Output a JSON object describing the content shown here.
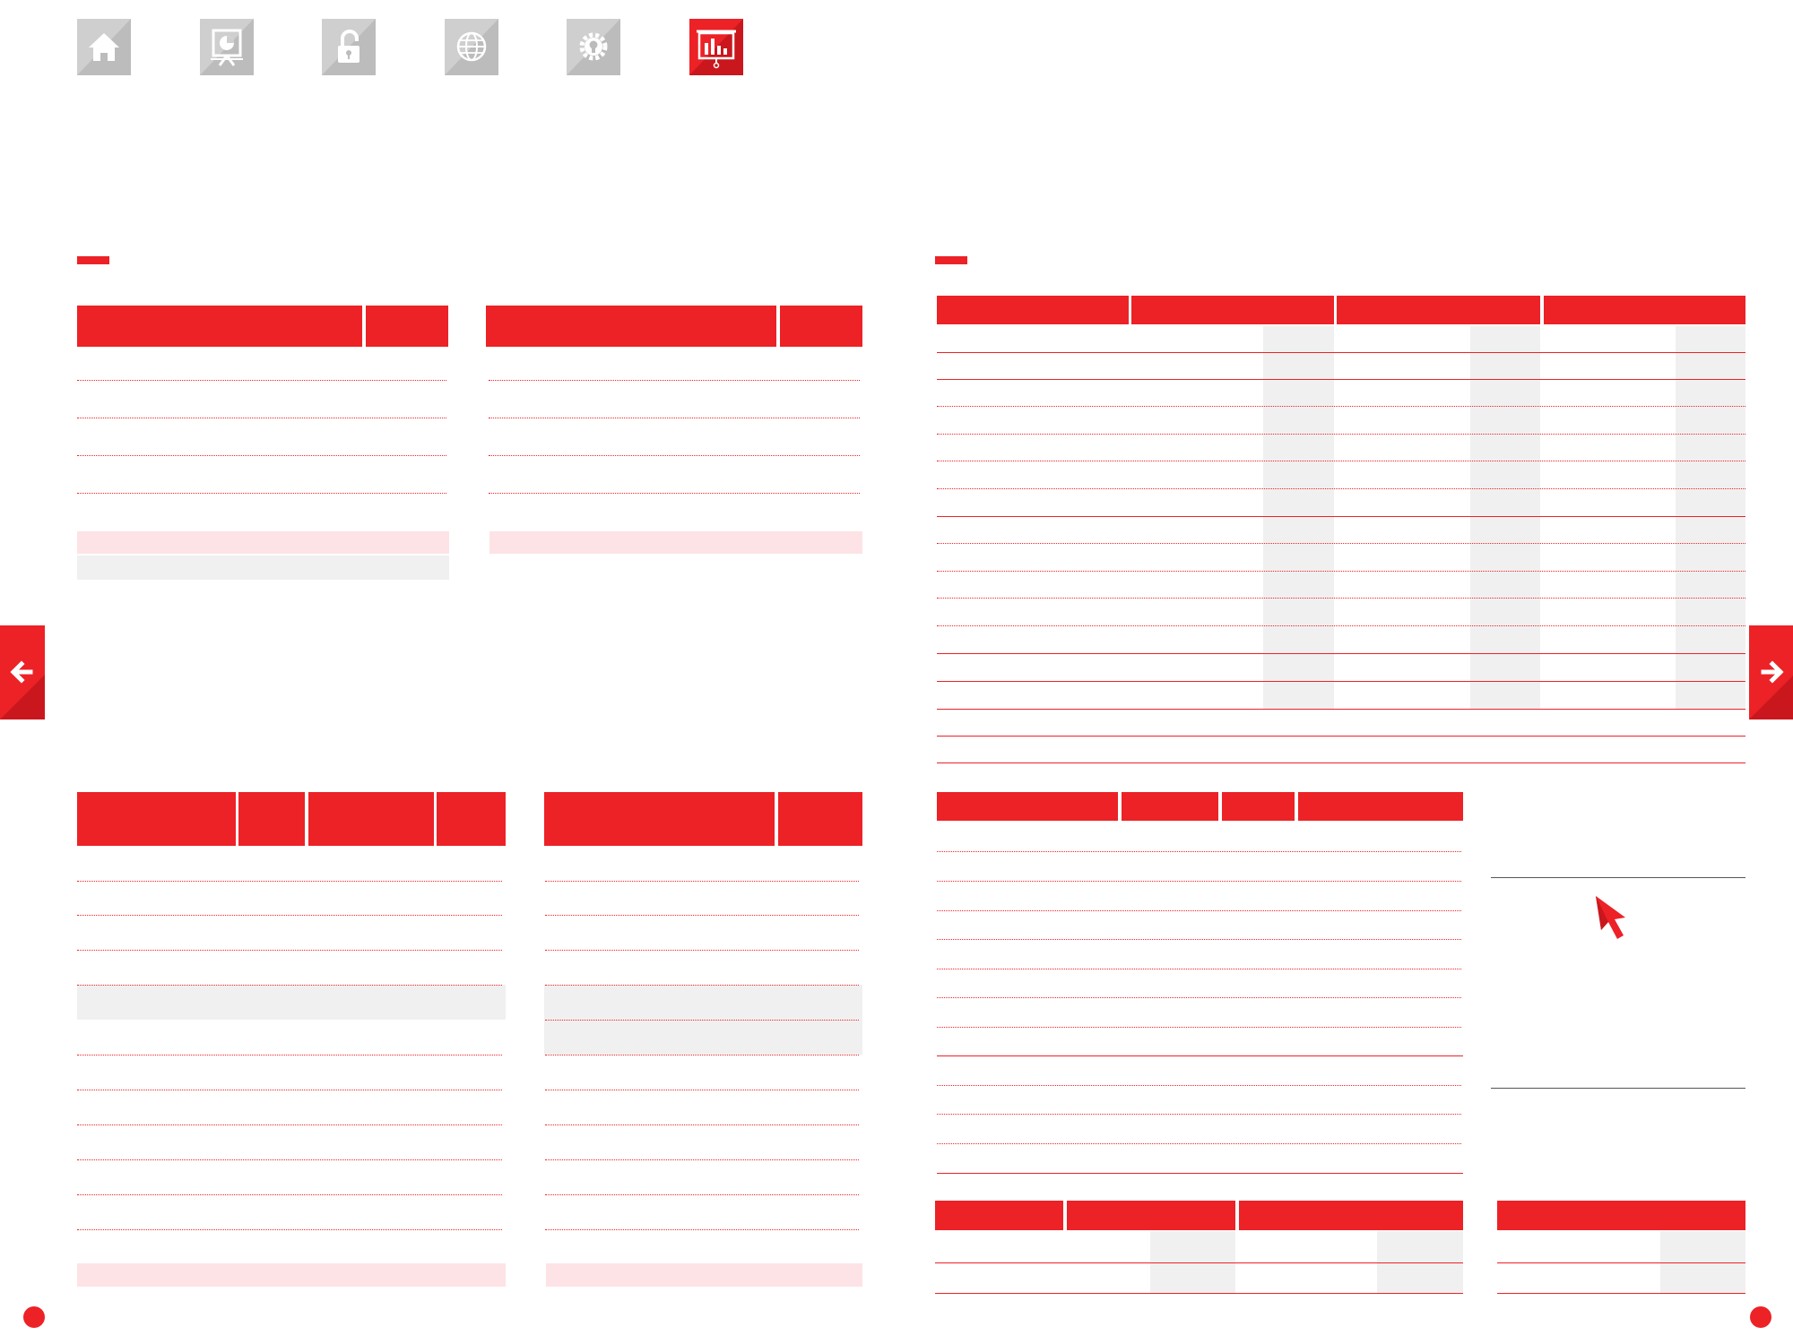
{
  "nav": {
    "icons": [
      "home-icon",
      "presentation-icon",
      "unlock-icon",
      "globe-icon",
      "gear-bulb-icon",
      "chart-board-icon"
    ],
    "active_index": 5,
    "inactive_color": "#c8c8c8",
    "active_color": "#ec2227"
  },
  "page": {
    "prev_icon": "arrow-left-icon",
    "next_icon": "arrow-right-icon",
    "pointer_icon": "cursor-arrow-icon"
  },
  "colors": {
    "accent": "#ec2227",
    "highlight_pink": "#fde3e6",
    "highlight_grey": "#f0f0f0"
  }
}
